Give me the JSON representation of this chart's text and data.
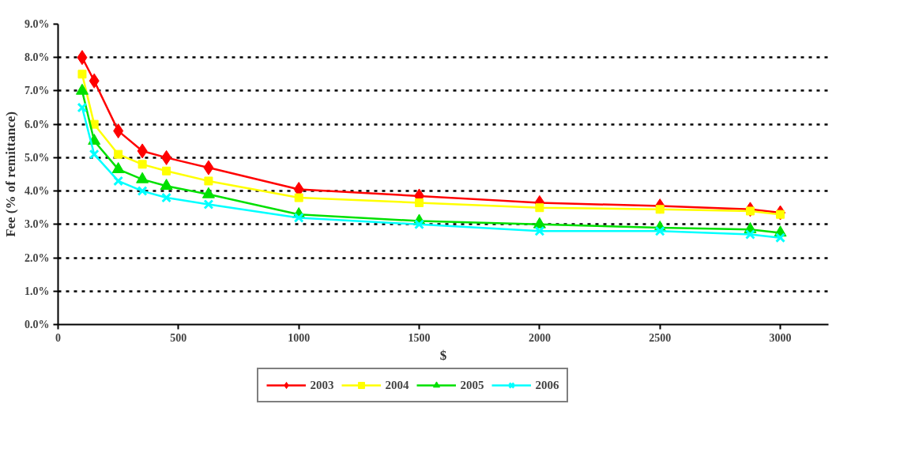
{
  "chart_data": {
    "type": "line",
    "xlabel": "$",
    "ylabel": "Fee (% of remittance)",
    "x": [
      100,
      150,
      250,
      350,
      450,
      625,
      1000,
      1500,
      2000,
      2500,
      2875,
      3000
    ],
    "series": [
      {
        "name": "2003",
        "color": "#ff0000",
        "marker": "diamond",
        "values": [
          8.0,
          7.3,
          5.8,
          5.2,
          5.0,
          4.7,
          4.05,
          3.85,
          3.65,
          3.55,
          3.45,
          3.35
        ]
      },
      {
        "name": "2004",
        "color": "#ffff00",
        "marker": "square",
        "values": [
          7.5,
          6.0,
          5.1,
          4.8,
          4.6,
          4.3,
          3.8,
          3.65,
          3.5,
          3.45,
          3.4,
          3.3
        ]
      },
      {
        "name": "2005",
        "color": "#00e000",
        "marker": "triangle",
        "values": [
          7.0,
          5.5,
          4.65,
          4.35,
          4.15,
          3.9,
          3.3,
          3.1,
          3.0,
          2.9,
          2.85,
          2.75
        ]
      },
      {
        "name": "2006",
        "color": "#00ffff",
        "marker": "cross",
        "values": [
          6.5,
          5.1,
          4.3,
          4.0,
          3.8,
          3.6,
          3.2,
          3.0,
          2.8,
          2.8,
          2.7,
          2.6
        ]
      }
    ],
    "xlim": [
      0,
      3200
    ],
    "xticks": [
      0,
      500,
      1000,
      1500,
      2000,
      2500,
      3000
    ],
    "ylim": [
      0,
      9
    ],
    "yticks": [
      {
        "value": 0,
        "label": "0.0%"
      },
      {
        "value": 1,
        "label": "1.0%"
      },
      {
        "value": 2,
        "label": "2.0%"
      },
      {
        "value": 3,
        "label": "3.0%"
      },
      {
        "value": 4,
        "label": "4.0%"
      },
      {
        "value": 5,
        "label": "5.0%"
      },
      {
        "value": 6,
        "label": "6.0%"
      },
      {
        "value": 7,
        "label": "7.0%"
      },
      {
        "value": 8,
        "label": "8.0%"
      },
      {
        "value": 9,
        "label": "9.0%"
      }
    ],
    "grid": "y",
    "legend": "bottom",
    "line_style": "solid"
  }
}
